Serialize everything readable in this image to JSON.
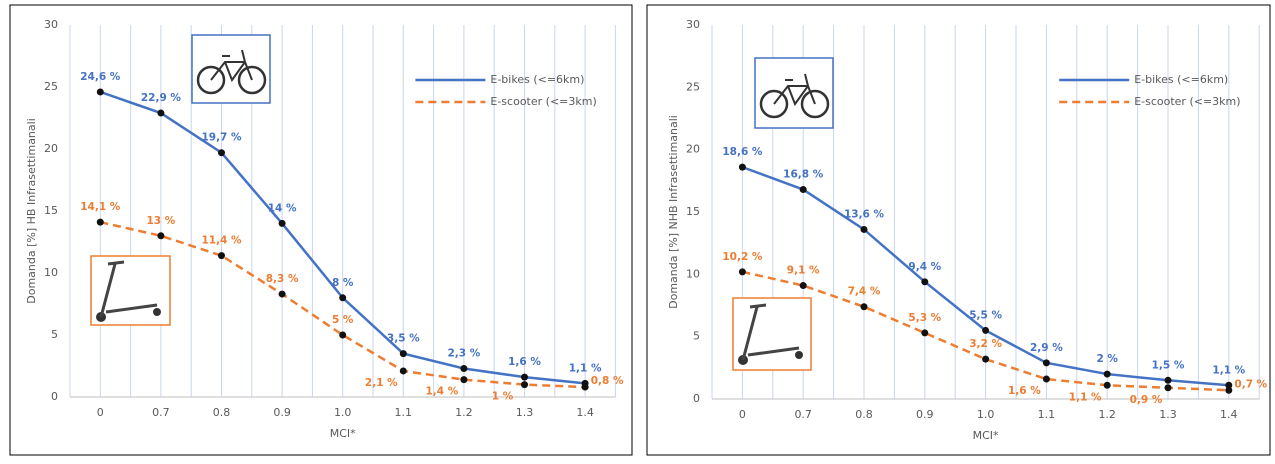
{
  "chart_data": [
    {
      "type": "line",
      "ylabel": "Domanda [%] HB Infrasettimanali",
      "xlabel": "MCI*",
      "categories": [
        "0",
        "0.7",
        "0.8",
        "0.9",
        "1.0",
        "1.1",
        "1.2",
        "1.3",
        "1.4"
      ],
      "ylim": [
        0,
        30
      ],
      "yticks": [
        0,
        5,
        10,
        15,
        20,
        25,
        30
      ],
      "grid": true,
      "legend": "upper right",
      "series": [
        {
          "name": "E-bikes (<=6km)",
          "color": "#4472c4",
          "linestyle": "solid",
          "values": [
            24.6,
            22.9,
            19.7,
            14,
            8,
            3.5,
            2.3,
            1.6,
            1.1
          ],
          "value_labels": [
            "24,6 %",
            "22,9 %",
            "19,7 %",
            "14 %",
            "8 %",
            "3,5 %",
            "2,3 %",
            "1,6 %",
            "1,1 %"
          ]
        },
        {
          "name": "E-scooter (<=3km)",
          "color": "#ed7d31",
          "linestyle": "dashed",
          "values": [
            14.1,
            13,
            11.4,
            8.3,
            5,
            2.1,
            1.4,
            1,
            0.8
          ],
          "value_labels": [
            "14,1 %",
            "13 %",
            "11,4 %",
            "8,3 %",
            "5 %",
            "2,1 %",
            "1,4 %",
            "1 %",
            "0,8 %"
          ]
        }
      ]
    },
    {
      "type": "line",
      "ylabel": "Domanda [%] NHB Infrasettimanali",
      "xlabel": "MCI*",
      "categories": [
        "0",
        "0.7",
        "0.8",
        "0.9",
        "1.0",
        "1.1",
        "1.2",
        "1.3",
        "1.4"
      ],
      "ylim": [
        0,
        30
      ],
      "yticks": [
        0,
        5,
        10,
        15,
        20,
        25,
        30
      ],
      "grid": true,
      "legend": "upper right",
      "series": [
        {
          "name": "E-bikes (<=6km)",
          "color": "#4472c4",
          "linestyle": "solid",
          "values": [
            18.6,
            16.8,
            13.6,
            9.4,
            5.5,
            2.9,
            2,
            1.5,
            1.1
          ],
          "value_labels": [
            "18,6 %",
            "16,8 %",
            "13,6 %",
            "9,4 %",
            "5,5 %",
            "2,9 %",
            "2 %",
            "1,5 %",
            "1,1 %"
          ]
        },
        {
          "name": "E-scooter (<=3km)",
          "color": "#ed7d31",
          "linestyle": "dashed",
          "values": [
            10.2,
            9.1,
            7.4,
            5.3,
            3.2,
            1.6,
            1.1,
            0.9,
            0.7
          ],
          "value_labels": [
            "10,2 %",
            "9,1 %",
            "7,4 %",
            "5,3 %",
            "3,2 %",
            "1,6 %",
            "1,1 %",
            "0,9 %",
            "0,7 %"
          ]
        }
      ]
    }
  ]
}
